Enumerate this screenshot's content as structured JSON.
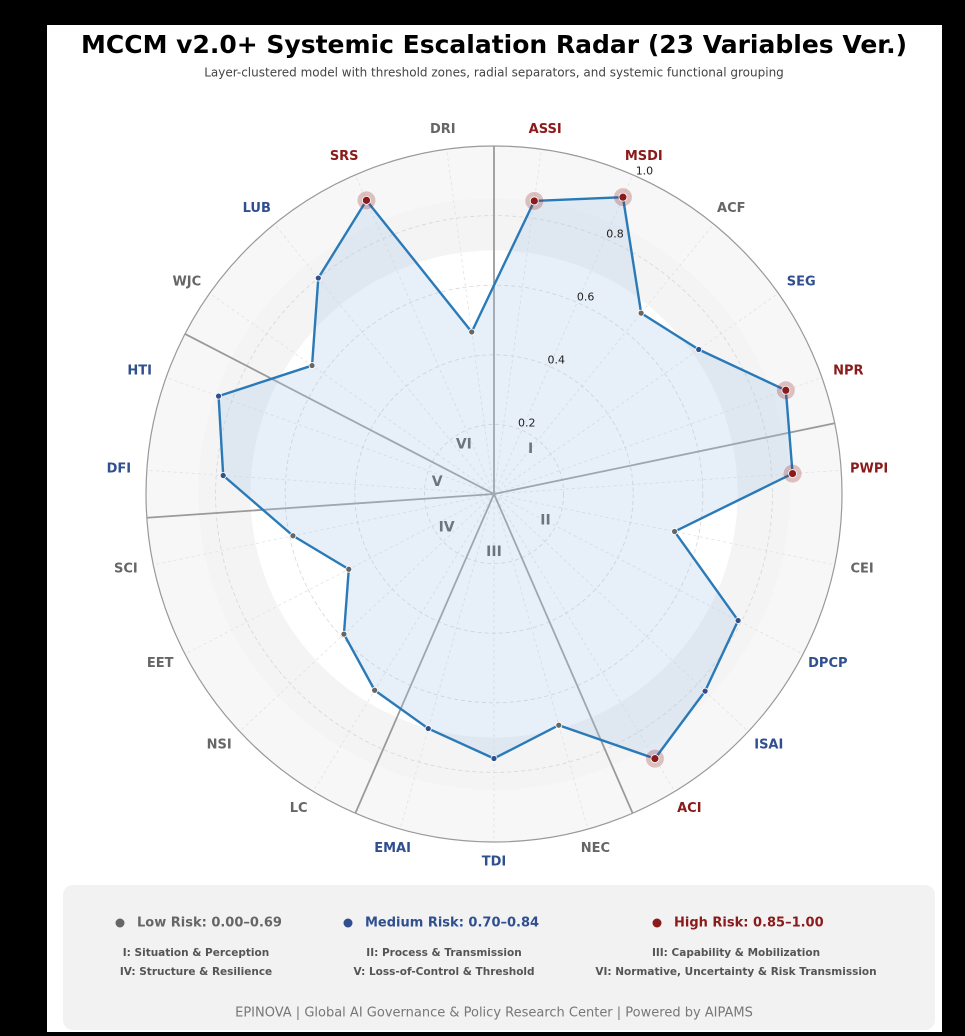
{
  "chart_data": {
    "type": "radar",
    "title": "MCCM v2.0+ Systemic Escalation Radar (23 Variables Ver.)",
    "subtitle": "Layer-clustered model with threshold zones, radial separators, and systemic functional grouping",
    "categories": [
      "ASSI",
      "MSDI",
      "ACF",
      "SEG",
      "NPR",
      "PWPI",
      "CEI",
      "DPCP",
      "ISAI",
      "ACI",
      "NEC",
      "TDI",
      "EMAI",
      "LC",
      "NSI",
      "EET",
      "SCI",
      "DFI",
      "HTI",
      "WJC",
      "LUB",
      "SRS",
      "DRI"
    ],
    "values": [
      0.85,
      0.93,
      0.67,
      0.72,
      0.89,
      0.86,
      0.53,
      0.79,
      0.83,
      0.89,
      0.69,
      0.76,
      0.7,
      0.66,
      0.59,
      0.47,
      0.59,
      0.78,
      0.84,
      0.64,
      0.8,
      0.92,
      0.47
    ],
    "ylim": [
      0,
      1
    ],
    "yticks": [
      0.2,
      0.4,
      0.6,
      0.8,
      {
        "value": 1,
        "label": "1.0"
      }
    ],
    "line_color": "#2a7ab8",
    "fill_color": "#a9c6e8",
    "levels": [
      {
        "label": "Low Risk: 0.00–0.69",
        "min": 0,
        "color": "#666666"
      },
      {
        "label": "Medium Risk: 0.70–0.84",
        "min": 0.7,
        "color": "#2f4f8f"
      },
      {
        "label": "High Risk: 0.85–1.00",
        "min": 0.85,
        "color": "#8b1a1a"
      }
    ],
    "zones": [
      {
        "numeral": "I",
        "label": "I: Situation & Perception"
      },
      {
        "numeral": "II",
        "label": "II: Process & Transmission"
      },
      {
        "numeral": "III",
        "label": "III: Capability & Mobilization"
      },
      {
        "numeral": "IV",
        "label": "IV: Structure & Resilience"
      },
      {
        "numeral": "V",
        "label": "V: Loss-of-Control & Threshold"
      },
      {
        "numeral": "VI",
        "label": "VI: Normative, Uncertainty & Risk Transmission"
      }
    ],
    "footer": "EPINOVA | Global AI Governance & Policy Research Center | Powered by AIPAMS"
  }
}
